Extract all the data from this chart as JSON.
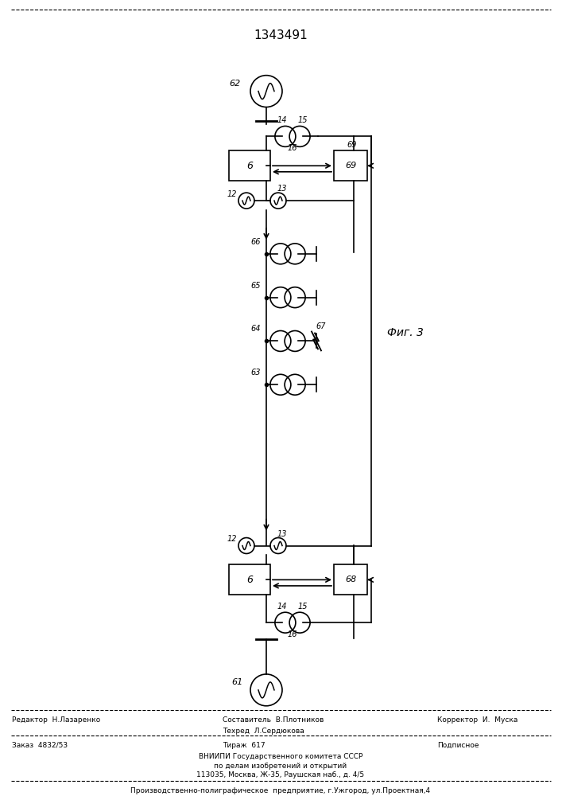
{
  "title": "1343491",
  "fig_label": "Фиг. 3",
  "background_color": "#ffffff",
  "line_color": "#000000",
  "top_source_label": "62",
  "bottom_source_label": "61",
  "box6_top_label": "6",
  "box69_top_label": "69",
  "box6_bot_label": "6",
  "box68_bot_label": "68",
  "ct_top_labels": [
    "14",
    "15",
    "16"
  ],
  "ct_bot_labels": [
    "14",
    "15",
    "16"
  ],
  "branch_labels": [
    "66",
    "65",
    "64",
    "63"
  ],
  "fault_label": "67",
  "ct_side_labels_top": [
    "12",
    "13"
  ],
  "ct_side_labels_bot": [
    "12",
    "13"
  ],
  "footer_lines": [
    [
      "Редактор  Н.Лазаренко",
      "Составитель  В.Плотников",
      "Корректор  И.  Муска"
    ],
    [
      "Техред  Л.Сердюкова",
      "",
      ""
    ],
    [
      "Заказ  4832/53",
      "Тираж  617",
      "Подписное"
    ],
    [
      "ВНИИПИ  Государственного  комитета  СССР",
      "",
      ""
    ],
    [
      "по  делам  изобретений  и  открытий",
      "",
      ""
    ],
    [
      "113035,  Москва,  Ж-35,  Раушская  наб.,  д.  4/5",
      "",
      ""
    ],
    [
      "Производственно-полиграфическое  предприятие,  г.Ужгород,  ул.Проектная,4",
      "",
      ""
    ]
  ]
}
